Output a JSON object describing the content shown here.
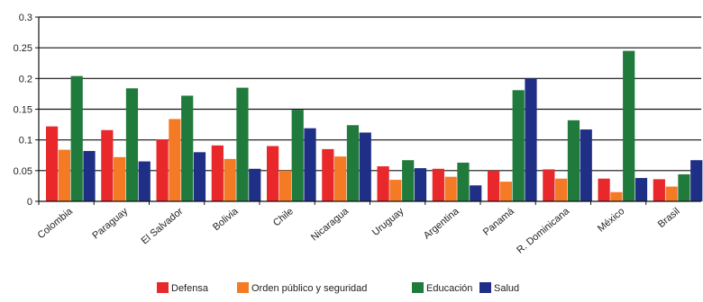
{
  "chart_data": {
    "type": "bar",
    "title": "",
    "xlabel": "",
    "ylabel": "",
    "ylim": [
      0,
      0.3
    ],
    "yticks": [
      "0",
      "0.05",
      "0.1",
      "0.15",
      "0.2",
      "0.25",
      "0.3"
    ],
    "grid": "horizontal",
    "legend_position": "bottom",
    "categories": [
      "Colombia",
      "Paraguay",
      "El Salvador",
      "Bolivia",
      "Chile",
      "Nicaragua",
      "Uruguay",
      "Argentina",
      "Panamá",
      "R. Dominicana",
      "México",
      "Brasil"
    ],
    "series": [
      {
        "name": "Defensa",
        "color": "#e8282a",
        "values": [
          0.122,
          0.116,
          0.101,
          0.091,
          0.09,
          0.085,
          0.057,
          0.053,
          0.05,
          0.052,
          0.037,
          0.036
        ]
      },
      {
        "name": "Orden público y seguridad",
        "color": "#f47a25",
        "values": [
          0.084,
          0.072,
          0.134,
          0.069,
          0.05,
          0.073,
          0.035,
          0.04,
          0.032,
          0.037,
          0.015,
          0.024
        ]
      },
      {
        "name": "Educación",
        "color": "#1f7a3c",
        "values": [
          0.204,
          0.184,
          0.172,
          0.185,
          0.149,
          0.124,
          0.067,
          0.063,
          0.181,
          0.132,
          0.245,
          0.044
        ]
      },
      {
        "name": "Salud",
        "color": "#1f2f86",
        "values": [
          0.082,
          0.065,
          0.08,
          0.053,
          0.119,
          0.112,
          0.054,
          0.026,
          0.2,
          0.117,
          0.038,
          0.067
        ]
      }
    ]
  }
}
